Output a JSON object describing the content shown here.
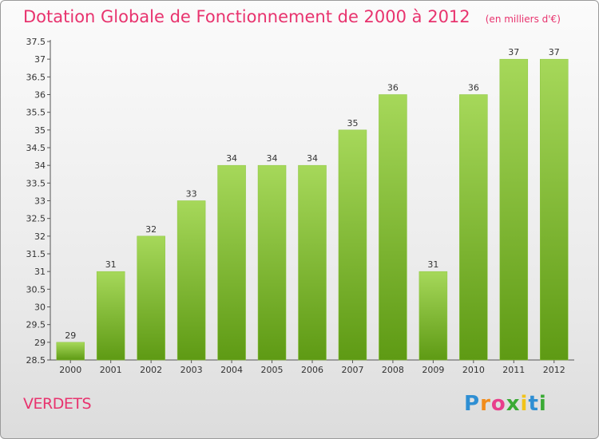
{
  "header": {
    "title": "Dotation Globale de Fonctionnement de 2000 à 2012",
    "unit": "(en milliers d'€)"
  },
  "footer": {
    "commune": "VERDETS",
    "logo_text": "Proxiti"
  },
  "colors": {
    "accent": "#e8336e",
    "bar_top": "#a6d85a",
    "bar_bottom": "#5e9a14"
  },
  "chart_data": {
    "type": "bar",
    "title": "Dotation Globale de Fonctionnement de 2000 à 2012",
    "subtitle": "(en milliers d'€)",
    "categories": [
      "2000",
      "2001",
      "2002",
      "2003",
      "2004",
      "2005",
      "2006",
      "2007",
      "2008",
      "2009",
      "2010",
      "2011",
      "2012"
    ],
    "values": [
      29,
      31,
      32,
      33,
      34,
      34,
      34,
      35,
      36,
      31,
      36,
      37,
      37
    ],
    "ylim": [
      28.5,
      37.5
    ],
    "ytick_step": 0.5,
    "grid": false,
    "xlabel": "",
    "ylabel": ""
  }
}
